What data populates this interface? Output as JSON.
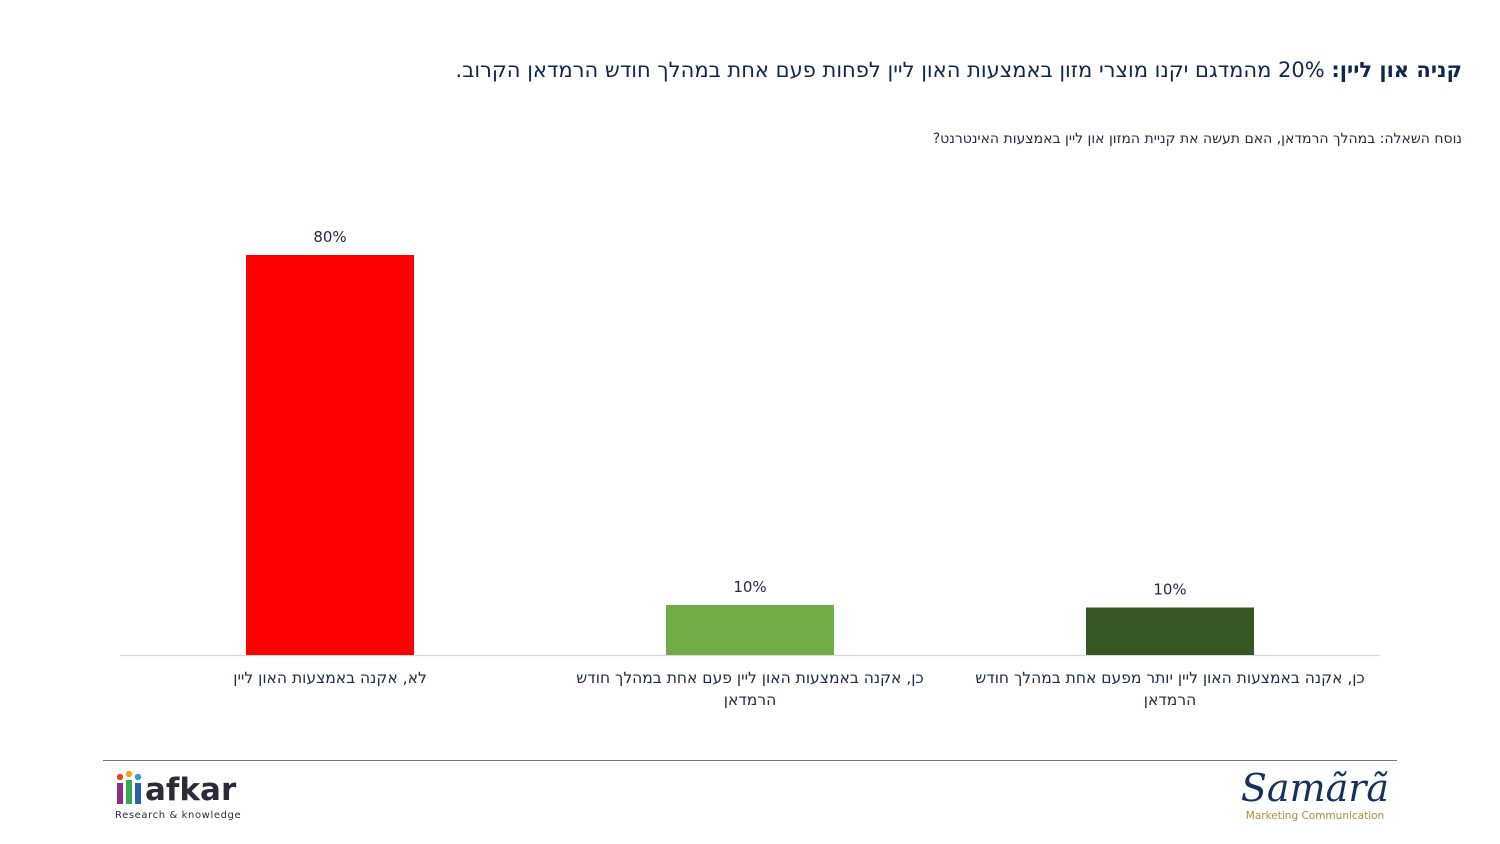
{
  "title": {
    "lead": "קניה און ליין:",
    "text": " 20% מהמדגם יקנו מוצרי מזון באמצעות האון ליין לפחות פעם אחת במהלך חודש הרמדאן הקרוב."
  },
  "subtitle": "נוסח השאלה: במהלך הרמדאן, האם תעשה את קניית המזון און ליין באמצעות האינטרנט?",
  "chart_data": {
    "type": "bar",
    "categories": [
      "לא, אקנה באמצעות האון ליין",
      "כן, אקנה באמצעות האון ליין פעם אחת במהלך חודש הרמדאן",
      "כן, אקנה באמצעות האון ליין יותר מפעם אחת במהלך חודש הרמדאן"
    ],
    "values": [
      80,
      10,
      9.5
    ],
    "data_labels": [
      "80%",
      "10%",
      "10%"
    ],
    "colors": [
      "#ff0000",
      "#70ad47",
      "#375623"
    ],
    "ylim": [
      0,
      80
    ],
    "grid": false,
    "legend": "none"
  },
  "footer": {
    "afkar": {
      "name": "afkar",
      "tagline": "Research & knowledge"
    },
    "samara": {
      "name": "Samãrã",
      "tagline": "Marketing Communication"
    }
  }
}
